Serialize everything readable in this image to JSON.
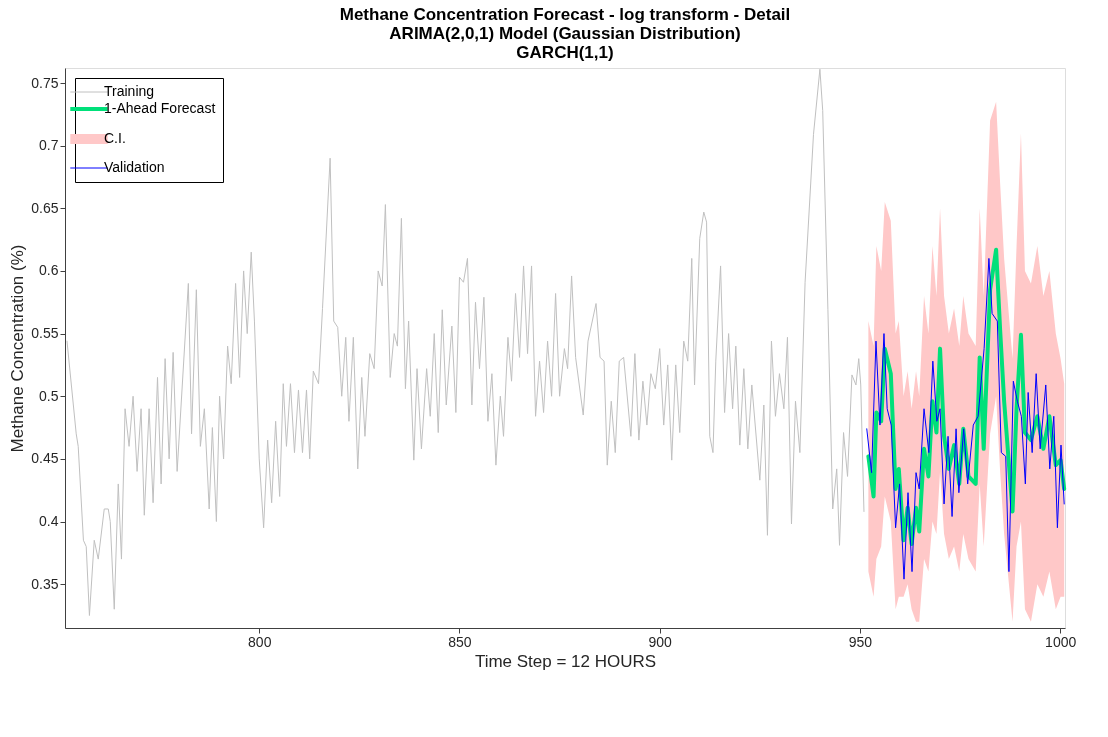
{
  "chart_data": {
    "type": "line",
    "title": "Methane Concentration Forecast - log transform - Detail",
    "subtitle": "ARIMA(2,0,1) Model (Gaussian Distribution)\nGARCH(1,1)",
    "xlabel": "Time Step = 12 HOURS",
    "ylabel": "Methane Concentration (%)",
    "annotations": [
      "C.I."
    ],
    "xlim": [
      751.5,
      1001.2
    ],
    "ylim": [
      0.315,
      0.762
    ],
    "xticks": [
      800,
      850,
      900,
      950,
      1000
    ],
    "yticks": [
      0.35,
      0.4,
      0.45,
      0.5,
      0.55,
      0.6,
      0.65,
      0.7,
      0.75
    ],
    "grid": false,
    "legend": "top left",
    "marker": "none",
    "line_style": "solid",
    "series": [
      {
        "name": "Training",
        "color": "#c0c0c0",
        "x": [
          752,
          754.3,
          754.8,
          756.1,
          756.8,
          757.6,
          758.8,
          759.8,
          761.3,
          762.3,
          762.8,
          763.8,
          764.8,
          765.6,
          766.5,
          767.5,
          768.5,
          769.5,
          770.5,
          771.3,
          772.5,
          773.5,
          774.6,
          775.5,
          776.5,
          777.5,
          778.5,
          779.5,
          782.3,
          783.1,
          784.3,
          785.3,
          786.3,
          787.5,
          788.3,
          789.3,
          790.1,
          791.1,
          792.1,
          793,
          794.1,
          795.1,
          796.1,
          797,
          798,
          798.8,
          800,
          801.1,
          802.1,
          803.1,
          804.1,
          805.1,
          806,
          806.8,
          807.8,
          808.8,
          809.8,
          810.8,
          811.8,
          812.6,
          813.5,
          814.8,
          815.8,
          817.7,
          818.6,
          819.6,
          820.6,
          821.6,
          822.4,
          823.5,
          824.6,
          825.6,
          826.4,
          827.6,
          828.7,
          829.7,
          830.7,
          831.5,
          832.7,
          833.7,
          834.5,
          835.5,
          836.5,
          837.3,
          838.6,
          839.4,
          840.5,
          841.8,
          842.7,
          843.7,
          844.7,
          845.7,
          846.7,
          848.1,
          849.1,
          850,
          851,
          852,
          853.1,
          854,
          855,
          856.1,
          857.1,
          858.1,
          859.1,
          860.2,
          861,
          862.1,
          863,
          864,
          865,
          866,
          867,
          868,
          869,
          870,
          871,
          872,
          873,
          874,
          875,
          876.2,
          877,
          878,
          879,
          880.9,
          882.1,
          884.1,
          885.1,
          886.1,
          886.9,
          887.9,
          888.9,
          889.9,
          891,
          892.8,
          893.8,
          894.8,
          895.8,
          896.8,
          897.8,
          898.9,
          900,
          901,
          902,
          903,
          904,
          905,
          906,
          907,
          908,
          908.7,
          910,
          911,
          911.7,
          912.5,
          913.3,
          914,
          915.2,
          916.2,
          917.2,
          918.2,
          919,
          920,
          921,
          922,
          923,
          925,
          926,
          926.9,
          927.9,
          928.9,
          929.9,
          931,
          931.9,
          932.9,
          933.9,
          935,
          936.3,
          938.4,
          940,
          940.7,
          942,
          943.2,
          944.2,
          944.9,
          945.9,
          946.9,
          948,
          949,
          949.7,
          950.2,
          951
        ],
        "values": [
          0.544,
          0.47,
          0.46,
          0.385,
          0.38,
          0.325,
          0.385,
          0.37,
          0.41,
          0.41,
          0.4,
          0.33,
          0.43,
          0.37,
          0.49,
          0.46,
          0.5,
          0.44,
          0.49,
          0.405,
          0.49,
          0.415,
          0.515,
          0.43,
          0.53,
          0.45,
          0.535,
          0.44,
          0.59,
          0.47,
          0.585,
          0.46,
          0.49,
          0.41,
          0.475,
          0.4,
          0.5,
          0.45,
          0.54,
          0.51,
          0.59,
          0.515,
          0.6,
          0.55,
          0.615,
          0.56,
          0.45,
          0.395,
          0.465,
          0.415,
          0.48,
          0.42,
          0.51,
          0.46,
          0.51,
          0.455,
          0.505,
          0.455,
          0.505,
          0.45,
          0.52,
          0.51,
          0.57,
          0.69,
          0.56,
          0.555,
          0.5,
          0.547,
          0.48,
          0.547,
          0.442,
          0.515,
          0.468,
          0.534,
          0.522,
          0.6,
          0.588,
          0.653,
          0.515,
          0.55,
          0.54,
          0.642,
          0.506,
          0.56,
          0.449,
          0.522,
          0.458,
          0.522,
          0.484,
          0.55,
          0.471,
          0.569,
          0.493,
          0.556,
          0.487,
          0.595,
          0.591,
          0.61,
          0.493,
          0.575,
          0.522,
          0.579,
          0.48,
          0.518,
          0.445,
          0.5,
          0.468,
          0.547,
          0.512,
          0.582,
          0.531,
          0.604,
          0.534,
          0.604,
          0.484,
          0.528,
          0.487,
          0.544,
          0.5,
          0.582,
          0.5,
          0.538,
          0.522,
          0.596,
          0.531,
          0.485,
          0.544,
          0.574,
          0.531,
          0.528,
          0.445,
          0.496,
          0.455,
          0.528,
          0.531,
          0.468,
          0.534,
          0.465,
          0.512,
          0.477,
          0.518,
          0.506,
          0.538,
          0.477,
          0.525,
          0.449,
          0.525,
          0.471,
          0.544,
          0.528,
          0.61,
          0.509,
          0.626,
          0.647,
          0.639,
          0.468,
          0.455,
          0.528,
          0.604,
          0.487,
          0.55,
          0.49,
          0.54,
          0.461,
          0.522,
          0.458,
          0.509,
          0.433,
          0.493,
          0.389,
          0.544,
          0.484,
          0.518,
          0.49,
          0.547,
          0.398,
          0.496,
          0.455,
          0.591,
          0.709,
          0.761,
          0.728,
          0.569,
          0.41,
          0.442,
          0.381,
          0.471,
          0.436,
          0.517,
          0.509,
          0.53,
          0.509,
          0.408
        ]
      },
      {
        "name": "1-Ahead Forecast",
        "color": "#00e07a",
        "x": [
          952.1,
          953.4,
          954.1,
          955.3,
          956.2,
          957.7,
          958.9,
          959.7,
          960.9,
          961.9,
          962.9,
          964,
          964.8,
          966,
          967.1,
          968.1,
          969.1,
          970,
          971,
          972.2,
          973.5,
          974.8,
          975.8,
          977.1,
          978.9,
          979.9,
          980.9,
          982.5,
          984,
          985,
          986,
          988.1,
          989.1,
          990.2,
          991.2,
          992.7,
          994.3,
          995.8,
          997.3,
          998.9,
          1000.1,
          1001
        ],
        "values": [
          0.452,
          0.42,
          0.487,
          0.48,
          0.538,
          0.518,
          0.426,
          0.442,
          0.385,
          0.411,
          0.382,
          0.411,
          0.392,
          0.458,
          0.436,
          0.496,
          0.471,
          0.538,
          0.468,
          0.442,
          0.461,
          0.43,
          0.474,
          0.436,
          0.43,
          0.531,
          0.458,
          0.585,
          0.617,
          0.553,
          0.496,
          0.408,
          0.49,
          0.549,
          0.471,
          0.465,
          0.484,
          0.458,
          0.484,
          0.445,
          0.449,
          0.426
        ],
        "lower": [
          0.36,
          0.34,
          0.37,
          0.38,
          0.42,
          0.4,
          0.33,
          0.34,
          0.34,
          0.35,
          0.33,
          0.32,
          0.32,
          0.37,
          0.36,
          0.4,
          0.39,
          0.44,
          0.39,
          0.37,
          0.38,
          0.36,
          0.39,
          0.37,
          0.36,
          0.43,
          0.38,
          0.47,
          0.5,
          0.44,
          0.39,
          0.32,
          0.38,
          0.4,
          0.33,
          0.32,
          0.35,
          0.34,
          0.36,
          0.33,
          0.34,
          0.34
        ],
        "upper": [
          0.56,
          0.54,
          0.62,
          0.6,
          0.655,
          0.64,
          0.55,
          0.56,
          0.5,
          0.52,
          0.49,
          0.52,
          0.5,
          0.58,
          0.55,
          0.62,
          0.58,
          0.65,
          0.58,
          0.55,
          0.57,
          0.54,
          0.58,
          0.55,
          0.54,
          0.65,
          0.58,
          0.72,
          0.735,
          0.67,
          0.61,
          0.53,
          0.62,
          0.71,
          0.6,
          0.59,
          0.62,
          0.58,
          0.6,
          0.55,
          0.53,
          0.51
        ]
      },
      {
        "name": "Validation",
        "color": "#0000ff",
        "x": [
          951.7,
          952.9,
          954,
          955,
          956,
          956.8,
          957.8,
          958.9,
          959.9,
          961,
          962,
          963,
          964,
          964.8,
          966,
          967.2,
          968.2,
          969.2,
          970,
          971,
          972,
          973,
          974,
          974.7,
          975.9,
          976.9,
          978.3,
          979.5,
          981,
          982.2,
          983,
          984.3,
          985.3,
          986.4,
          987.2,
          988.3,
          989.3,
          990.3,
          991.3,
          992,
          993,
          994,
          995,
          996.4,
          997.4,
          998.4,
          999.3,
          1000.2,
          1001
        ],
        "values": [
          0.474,
          0.439,
          0.544,
          0.477,
          0.55,
          0.49,
          0.477,
          0.395,
          0.43,
          0.354,
          0.423,
          0.36,
          0.439,
          0.426,
          0.49,
          0.455,
          0.528,
          0.48,
          0.49,
          0.414,
          0.468,
          0.404,
          0.474,
          0.423,
          0.474,
          0.43,
          0.477,
          0.484,
          0.538,
          0.61,
          0.566,
          0.56,
          0.455,
          0.452,
          0.36,
          0.512,
          0.496,
          0.484,
          0.43,
          0.503,
          0.455,
          0.518,
          0.458,
          0.509,
          0.442,
          0.484,
          0.395,
          0.461,
          0.414
        ]
      }
    ]
  }
}
